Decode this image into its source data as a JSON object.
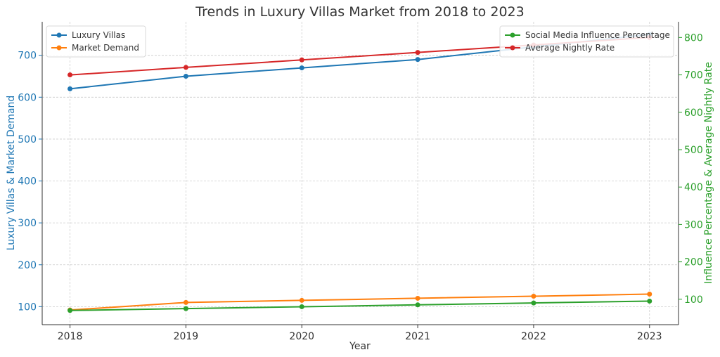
{
  "chart_data": {
    "type": "line",
    "title": "Trends in Luxury Villas Market from 2018 to 2023",
    "xlabel": "Year",
    "ylabel_left": "Luxury Villas & Market Demand",
    "ylabel_right": "Influence Percentage & Average Nightly Rate",
    "x": [
      "2018",
      "2019",
      "2020",
      "2021",
      "2022",
      "2023"
    ],
    "xlim": [
      2017.76,
      2023.25
    ],
    "ylim_left": [
      57,
      780
    ],
    "ylim_right": [
      32,
      842
    ],
    "yticks_left": [
      100,
      200,
      300,
      400,
      500,
      600,
      700
    ],
    "yticks_right": [
      100,
      200,
      300,
      400,
      500,
      600,
      700,
      800
    ],
    "grid": true,
    "left_axis_color": "#1f77b4",
    "right_axis_color": "#2ca02c",
    "legends": [
      {
        "placement": "top-left",
        "entries": [
          "Luxury Villas",
          "Market Demand"
        ]
      },
      {
        "placement": "top-right",
        "entries": [
          "Social Media Influence Percentage",
          "Average Nightly Rate"
        ]
      }
    ],
    "series": [
      {
        "name": "Luxury Villas",
        "axis": "left",
        "color": "#1f77b4",
        "values": [
          620,
          650,
          670,
          690,
          720,
          750
        ]
      },
      {
        "name": "Market Demand",
        "axis": "left",
        "color": "#ff7f0e",
        "values": [
          92,
          110,
          115,
          120,
          125,
          130
        ]
      },
      {
        "name": "Social Media Influence Percentage",
        "axis": "right",
        "color": "#2ca02c",
        "values": [
          70,
          75,
          80,
          85,
          90,
          95
        ]
      },
      {
        "name": "Average Nightly Rate",
        "axis": "right",
        "color": "#d62728",
        "values": [
          700,
          720,
          740,
          760,
          780,
          800
        ]
      }
    ]
  }
}
